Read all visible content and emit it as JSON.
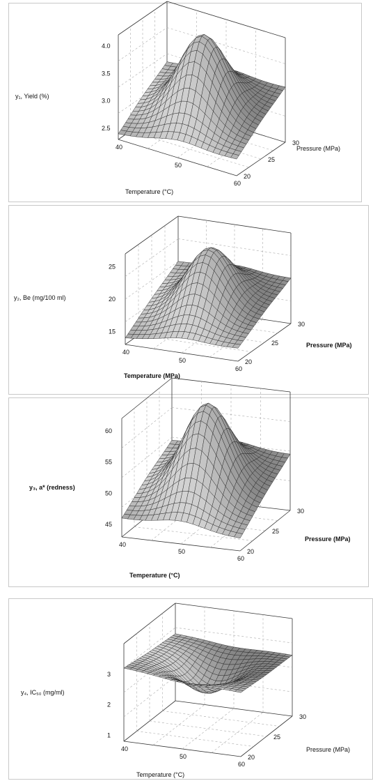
{
  "chart_data": [
    {
      "type": "surface",
      "xlabel": "Temperature (°C)",
      "ylabel": "Pressure (MPa)",
      "zlabel": "y₁, Yield (%)",
      "x_ticks": [
        "40",
        "50",
        "60"
      ],
      "y_ticks": [
        "20",
        "25",
        "30"
      ],
      "z_ticks": [
        "2.5",
        "3.0",
        "3.5",
        "4.0"
      ],
      "xlim": [
        40,
        60
      ],
      "ylim": [
        20,
        30
      ],
      "zlim": [
        2.3,
        4.2
      ],
      "grid": true,
      "surface": {
        "shape": "peak",
        "peak_x": 50,
        "peak_y": 25,
        "peak_z": 4.2,
        "corners": {
          "x40_y20": 2.4,
          "x60_y20": 2.6,
          "x40_y30": 3.1,
          "x60_y30": 3.3
        }
      }
    },
    {
      "type": "surface",
      "xlabel": "Temperature (MPa)",
      "ylabel": "Pressure (MPa)",
      "zlabel": "y₂, Be (mg/100 ml)",
      "x_ticks": [
        "40",
        "50",
        "60"
      ],
      "y_ticks": [
        "20",
        "25",
        "30"
      ],
      "z_ticks": [
        "15",
        "20",
        "25"
      ],
      "xlim": [
        40,
        60
      ],
      "ylim": [
        20,
        30
      ],
      "zlim": [
        13,
        27
      ],
      "grid": true,
      "surface": {
        "shape": "peak",
        "peak_x": 50,
        "peak_y": 25,
        "peak_z": 26,
        "corners": {
          "x40_y20": 14,
          "x60_y20": 15,
          "x40_y30": 20,
          "x60_y30": 20
        }
      }
    },
    {
      "type": "surface",
      "xlabel": "Temperature (°C)",
      "ylabel": "Pressure (MPa)",
      "zlabel": "y₃, a* (redness)",
      "x_ticks": [
        "40",
        "50",
        "60"
      ],
      "y_ticks": [
        "20",
        "25",
        "30"
      ],
      "z_ticks": [
        "45",
        "50",
        "55",
        "60"
      ],
      "xlim": [
        40,
        60
      ],
      "ylim": [
        20,
        30
      ],
      "zlim": [
        43,
        62
      ],
      "grid": true,
      "surface": {
        "shape": "peak",
        "peak_x": 50,
        "peak_y": 25,
        "peak_z": 62,
        "corners": {
          "x40_y20": 46,
          "x60_y20": 45,
          "x40_y30": 52,
          "x60_y30": 52
        }
      }
    },
    {
      "type": "surface",
      "xlabel": "Temperature (°C)",
      "ylabel": "Pressure (MPa)",
      "zlabel": "y₄, IC₅₀ (mg/ml)",
      "x_ticks": [
        "40",
        "50",
        "60"
      ],
      "y_ticks": [
        "20",
        "25",
        "30"
      ],
      "z_ticks": [
        "1",
        "2",
        "3"
      ],
      "xlim": [
        40,
        60
      ],
      "ylim": [
        20,
        30
      ],
      "zlim": [
        0.8,
        4
      ],
      "grid": true,
      "surface": {
        "shape": "dip",
        "peak_x": 50,
        "peak_y": 25,
        "peak_z": 2.0,
        "corners": {
          "x40_y20": 3.2,
          "x60_y20": 2.9,
          "x40_y30": 3.0,
          "x60_y30": 2.8
        }
      }
    }
  ]
}
